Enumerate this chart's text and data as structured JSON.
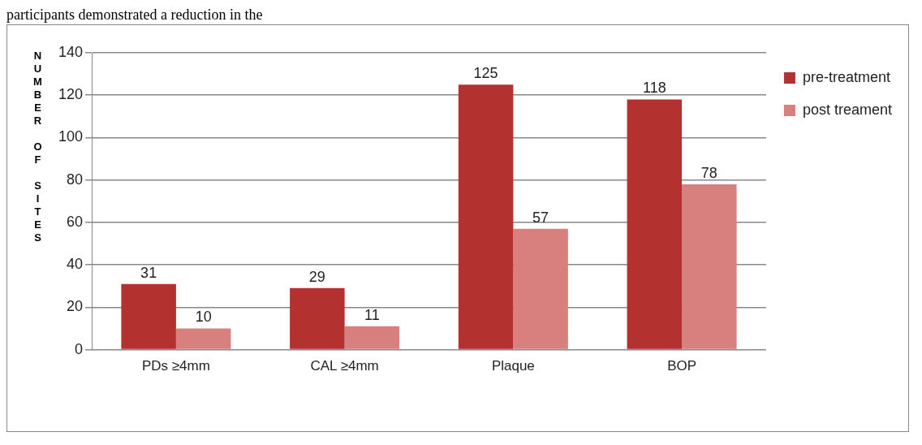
{
  "chart_data": {
    "type": "bar",
    "ylabel": "NUMBER OF SITES",
    "categories": [
      "PDs ≥4mm",
      "CAL ≥4mm",
      "Plaque",
      "BOP"
    ],
    "series": [
      {
        "name": "pre-treatment",
        "color": "#b3312f",
        "values": [
          31,
          29,
          125,
          118
        ]
      },
      {
        "name": "post treament",
        "color": "#d8807e",
        "values": [
          10,
          11,
          57,
          78
        ]
      }
    ],
    "ylim": [
      0,
      140
    ],
    "yticks": [
      0,
      20,
      40,
      60,
      80,
      100,
      120,
      140
    ],
    "grid": "y",
    "legend": "top right",
    "data_labels": true,
    "annotations": [
      "participants demonstrated a reduction in the"
    ]
  }
}
